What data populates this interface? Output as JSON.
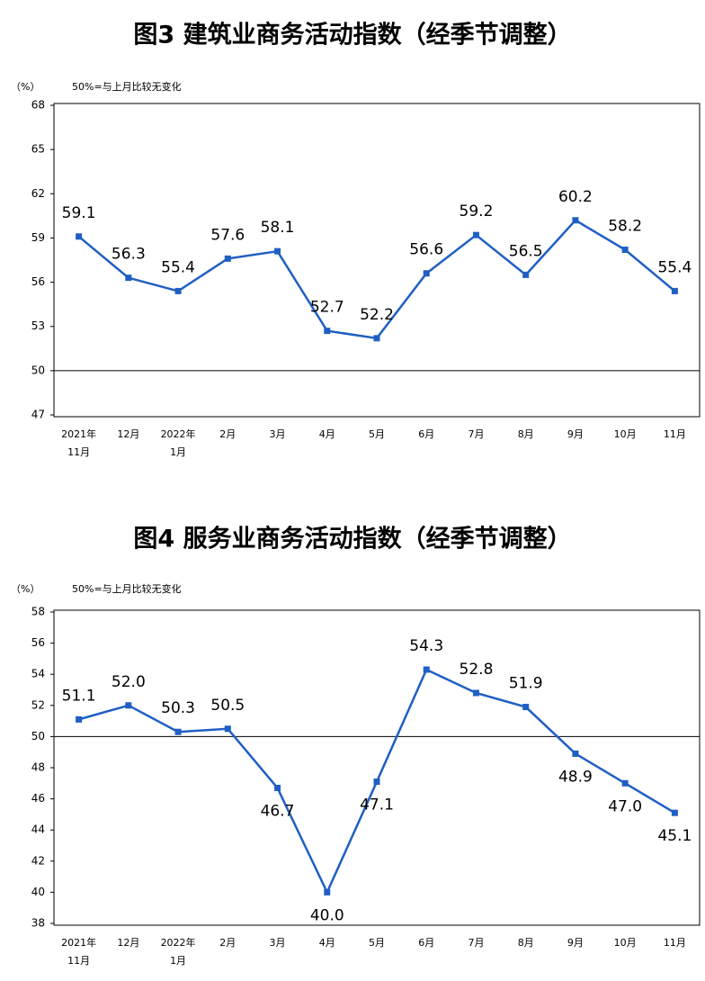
{
  "chart_data": [
    {
      "type": "line",
      "title": "图3  建筑业商务活动指数（经季节调整）",
      "y_unit": "（%）",
      "note": "50%=与上月比较无变化",
      "categories": [
        "2021年\n11月",
        "12月",
        "2022年\n1月",
        "2月",
        "3月",
        "4月",
        "5月",
        "6月",
        "7月",
        "8月",
        "9月",
        "10月",
        "11月"
      ],
      "series": [
        {
          "name": "建筑业商务活动指数",
          "color": "#1f5fc4",
          "values": [
            59.1,
            56.3,
            55.4,
            57.6,
            58.1,
            52.7,
            52.2,
            56.6,
            59.2,
            56.5,
            60.2,
            58.2,
            55.4
          ]
        }
      ],
      "ylim": [
        47,
        68
      ],
      "yticks": [
        47,
        50,
        53,
        56,
        59,
        62,
        65,
        68
      ],
      "reference_line": 50
    },
    {
      "type": "line",
      "title": "图4  服务业商务活动指数（经季节调整）",
      "y_unit": "（%）",
      "note": "50%=与上月比较无变化",
      "categories": [
        "2021年\n11月",
        "12月",
        "2022年\n1月",
        "2月",
        "3月",
        "4月",
        "5月",
        "6月",
        "7月",
        "8月",
        "9月",
        "10月",
        "11月"
      ],
      "series": [
        {
          "name": "服务业商务活动指数",
          "color": "#1f5fc4",
          "values": [
            51.1,
            52.0,
            50.3,
            50.5,
            46.7,
            40.0,
            47.1,
            54.3,
            52.8,
            51.9,
            48.9,
            47.0,
            45.1
          ],
          "value_labels": [
            "51.1",
            "52.0",
            "50.3",
            "50.5",
            "46.7",
            "40.0",
            "47.1",
            "54.3",
            "52.8",
            "51.9",
            "48.9",
            "47.0",
            "45.1"
          ]
        }
      ],
      "ylim": [
        38,
        58
      ],
      "yticks": [
        38,
        40,
        42,
        44,
        46,
        48,
        50,
        52,
        54,
        56,
        58
      ],
      "reference_line": 50
    }
  ]
}
